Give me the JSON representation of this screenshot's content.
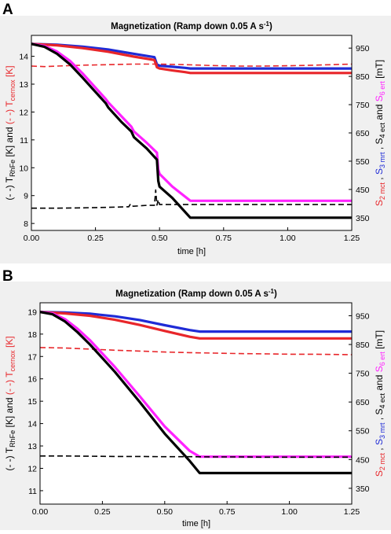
{
  "figure": {
    "colors": {
      "black": "#000000",
      "red": "#e8262a",
      "blue": "#1f2bd6",
      "magenta": "#ff22ff",
      "panel_bg": "#f0f0f0"
    }
  },
  "chart_data": [
    {
      "type": "line",
      "panel_label": "A",
      "title": "Magnetization (Ramp down 0.05 A s",
      "title_sup": "-1",
      "title_end": ")",
      "xlabel": "time  [h]",
      "ylabel_left": {
        "p1": "(- -) T",
        "p1_sub": "RhFe",
        "p2": " [K]  and  ",
        "p3": "(- -) T",
        "p3_sub": "cernox",
        "p4": " [K]"
      },
      "ylabel_right": {
        "p1": "S",
        "p1_sub": "2 mct",
        "p2": " , ",
        "p3": "S",
        "p3_sub": "3 mrt",
        "p4": " , S",
        "p4_sub": "4 ect",
        "p5": "  and  ",
        "p6": "S",
        "p6_sub": "6 ert",
        "p7": "  [mT]"
      },
      "xlim": [
        0,
        1.25
      ],
      "ylim_left": [
        7.75,
        14.75
      ],
      "ylim_right": [
        305,
        995
      ],
      "xticks": [
        "0.00",
        "0.25",
        "0.50",
        "0.75",
        "1.00",
        "1.25"
      ],
      "yticks_left": [
        "8",
        "9",
        "10",
        "11",
        "12",
        "13",
        "14"
      ],
      "yticks_right": [
        "350",
        "450",
        "550",
        "650",
        "750",
        "850",
        "950"
      ],
      "series": [
        {
          "color": "#1f2bd6",
          "dash": false,
          "axis": "right",
          "x": [
            0,
            0.1,
            0.2,
            0.3,
            0.4,
            0.48,
            0.49,
            0.5,
            0.55,
            0.6,
            0.62,
            1.25
          ],
          "y": [
            965,
            962,
            955,
            945,
            930,
            918,
            892,
            888,
            884,
            880,
            878,
            878
          ]
        },
        {
          "color": "#e8262a",
          "dash": false,
          "axis": "right",
          "x": [
            0,
            0.1,
            0.2,
            0.3,
            0.4,
            0.48,
            0.49,
            0.5,
            0.55,
            0.6,
            0.62,
            1.25
          ],
          "y": [
            965,
            960,
            950,
            937,
            920,
            908,
            882,
            878,
            871,
            865,
            862,
            862
          ]
        },
        {
          "color": "#e8262a",
          "dash": true,
          "axis": "left",
          "x": [
            0,
            0.05,
            0.1,
            0.2,
            0.3,
            0.4,
            0.5,
            0.6,
            0.7,
            0.8,
            0.9,
            1.0,
            1.1,
            1.25
          ],
          "y": [
            13.65,
            13.63,
            13.65,
            13.68,
            13.7,
            13.72,
            13.72,
            13.7,
            13.67,
            13.65,
            13.65,
            13.66,
            13.68,
            13.72
          ]
        },
        {
          "color": "#ff22ff",
          "dash": false,
          "axis": "right",
          "x": [
            0,
            0.05,
            0.1,
            0.15,
            0.2,
            0.25,
            0.29,
            0.3,
            0.35,
            0.39,
            0.4,
            0.45,
            0.49,
            0.495,
            0.5,
            0.55,
            0.62,
            1.25
          ],
          "y": [
            965,
            958,
            938,
            905,
            860,
            810,
            770,
            758,
            710,
            672,
            655,
            615,
            580,
            520,
            505,
            460,
            410,
            410
          ]
        },
        {
          "color": "#000000",
          "dash": false,
          "axis": "right",
          "x": [
            0,
            0.05,
            0.1,
            0.15,
            0.2,
            0.25,
            0.29,
            0.3,
            0.35,
            0.39,
            0.4,
            0.45,
            0.49,
            0.495,
            0.5,
            0.55,
            0.62,
            1.25
          ],
          "y": [
            965,
            955,
            930,
            893,
            845,
            795,
            755,
            740,
            690,
            655,
            635,
            595,
            555,
            480,
            460,
            420,
            350,
            350
          ]
        },
        {
          "color": "#000000",
          "dash": true,
          "axis": "left",
          "x": [
            0,
            0.1,
            0.2,
            0.3,
            0.38,
            0.385,
            0.39,
            0.395,
            0.4,
            0.45,
            0.48,
            0.485,
            0.49,
            0.495,
            0.5,
            0.55,
            0.6,
            0.7,
            0.8,
            0.9,
            1.0,
            1.1,
            1.25
          ],
          "y": [
            8.55,
            8.55,
            8.56,
            8.58,
            8.6,
            8.68,
            8.6,
            8.62,
            8.62,
            8.65,
            8.65,
            9.2,
            8.66,
            8.85,
            8.68,
            8.68,
            8.68,
            8.68,
            8.68,
            8.68,
            8.68,
            8.68,
            8.68
          ]
        }
      ]
    },
    {
      "type": "line",
      "panel_label": "B",
      "title": "Magnetization (Ramp down 0.05 A s",
      "title_sup": "-1",
      "title_end": ")",
      "xlabel": "time  [h]",
      "ylabel_left": {
        "p1": "(- -) T",
        "p1_sub": "RhFe",
        "p2": " [K]  and  ",
        "p3": "(- -) T",
        "p3_sub": "cernox",
        "p4": " [K]"
      },
      "ylabel_right": {
        "p1": "S",
        "p1_sub": "2 mct",
        "p2": " , ",
        "p3": "S",
        "p3_sub": "3 mrt",
        "p4": " , S",
        "p4_sub": "4 ect",
        "p5": "  and  ",
        "p6": "S",
        "p6_sub": "6 ert",
        "p7": "  [mT]"
      },
      "xlim": [
        0,
        1.25
      ],
      "ylim_left": [
        10.4,
        19.4
      ],
      "ylim_right": [
        295,
        995
      ],
      "xticks": [
        "0.00",
        "0.25",
        "0.50",
        "0.75",
        "1.00",
        "1.25"
      ],
      "yticks_left": [
        "11",
        "12",
        "13",
        "14",
        "15",
        "16",
        "17",
        "18",
        "19"
      ],
      "yticks_right": [
        "350",
        "450",
        "550",
        "650",
        "750",
        "850",
        "950"
      ],
      "series": [
        {
          "color": "#1f2bd6",
          "dash": false,
          "axis": "right",
          "x": [
            0,
            0.1,
            0.2,
            0.3,
            0.4,
            0.5,
            0.6,
            0.64,
            1.25
          ],
          "y": [
            963,
            961,
            957,
            948,
            935,
            917,
            900,
            895,
            895
          ]
        },
        {
          "color": "#e8262a",
          "dash": false,
          "axis": "right",
          "x": [
            0,
            0.1,
            0.2,
            0.3,
            0.4,
            0.5,
            0.6,
            0.64,
            1.25
          ],
          "y": [
            963,
            958,
            950,
            936,
            918,
            897,
            877,
            871,
            871
          ]
        },
        {
          "color": "#e8262a",
          "dash": true,
          "axis": "left",
          "x": [
            0,
            0.1,
            0.2,
            0.3,
            0.4,
            0.5,
            0.6,
            0.7,
            0.8,
            0.9,
            1.0,
            1.1,
            1.25
          ],
          "y": [
            17.4,
            17.38,
            17.33,
            17.28,
            17.24,
            17.2,
            17.17,
            17.15,
            17.13,
            17.12,
            17.1,
            17.1,
            17.08
          ]
        },
        {
          "color": "#ff22ff",
          "dash": false,
          "axis": "right",
          "x": [
            0,
            0.05,
            0.1,
            0.15,
            0.2,
            0.3,
            0.4,
            0.5,
            0.6,
            0.64,
            1.25
          ],
          "y": [
            963,
            958,
            938,
            905,
            865,
            772,
            670,
            565,
            480,
            460,
            460
          ]
        },
        {
          "color": "#000000",
          "dash": false,
          "axis": "right",
          "x": [
            0,
            0.05,
            0.1,
            0.15,
            0.2,
            0.3,
            0.4,
            0.5,
            0.6,
            0.64,
            1.25
          ],
          "y": [
            963,
            955,
            930,
            893,
            850,
            755,
            650,
            540,
            445,
            403,
            403
          ]
        },
        {
          "color": "#000000",
          "dash": true,
          "axis": "left",
          "x": [
            0,
            0.1,
            0.2,
            0.3,
            0.4,
            0.5,
            0.6,
            0.7,
            0.8,
            0.9,
            1.0,
            1.1,
            1.25
          ],
          "y": [
            12.55,
            12.55,
            12.54,
            12.53,
            12.53,
            12.52,
            12.52,
            12.51,
            12.51,
            12.5,
            12.5,
            12.5,
            12.5
          ]
        }
      ]
    }
  ]
}
